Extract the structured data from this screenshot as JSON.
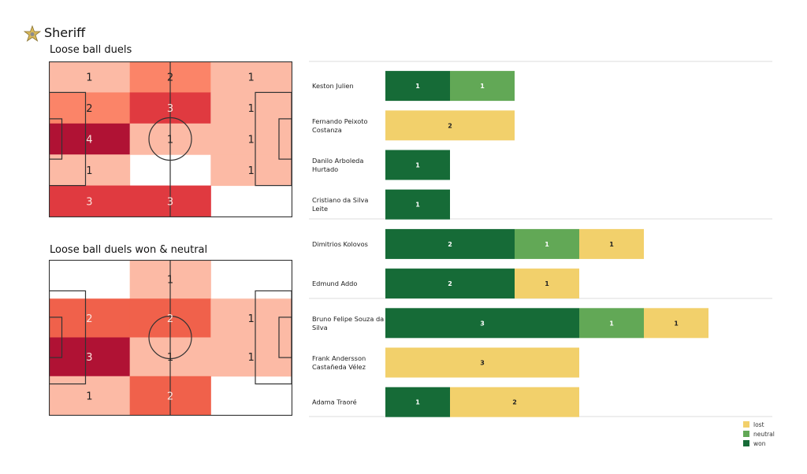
{
  "header": {
    "team": "Sheriff",
    "logo_icon": "sheriff-star-logo"
  },
  "colors": {
    "won": "#166b37",
    "neutral": "#62a856",
    "lost": "#f2d06b"
  },
  "chart_data": [
    {
      "type": "heatmap",
      "title": "Loose ball duels",
      "grid_rows": 5,
      "grid_cols": 3,
      "values": [
        [
          1,
          2,
          1
        ],
        [
          2,
          3,
          1
        ],
        [
          4,
          1,
          1
        ],
        [
          1,
          0,
          1
        ],
        [
          3,
          3,
          0
        ]
      ],
      "colors": {
        "1": "#fcbaa5",
        "2": "#fb8468",
        "3": "#e03a40",
        "4": "#b01234"
      }
    },
    {
      "type": "heatmap",
      "title": "Loose ball duels won & neutral",
      "grid_rows": 4,
      "grid_cols": 3,
      "values": [
        [
          0,
          1,
          0
        ],
        [
          2,
          2,
          1
        ],
        [
          3,
          1,
          1
        ],
        [
          1,
          2,
          0
        ]
      ],
      "colors": {
        "1": "#fcbaa5",
        "2": "#f0614b",
        "3": "#b01234"
      }
    },
    {
      "type": "bar",
      "orientation": "horizontal",
      "stacked": true,
      "categories": [
        "Keston Julien",
        "Fernando Peixoto Costanza",
        "Danilo Arboleda Hurtado",
        "Cristiano da Silva Leite",
        "Dimitrios Kolovos",
        "Edmund Addo",
        "Bruno Felipe Souza da Silva",
        "Frank Andersson Castañeda Vélez",
        "Adama Traoré"
      ],
      "groups": [
        [
          0,
          1,
          2,
          3
        ],
        [
          4,
          5
        ],
        [
          6,
          7,
          8
        ]
      ],
      "series": [
        {
          "name": "won",
          "values": [
            1,
            0,
            1,
            1,
            2,
            2,
            3,
            0,
            1
          ]
        },
        {
          "name": "neutral",
          "values": [
            1,
            0,
            0,
            0,
            1,
            0,
            1,
            0,
            0
          ]
        },
        {
          "name": "lost",
          "values": [
            0,
            2,
            0,
            0,
            1,
            1,
            1,
            3,
            2
          ]
        }
      ],
      "legend": [
        "lost",
        "neutral",
        "won"
      ],
      "legend_position": "bottom-right"
    }
  ]
}
